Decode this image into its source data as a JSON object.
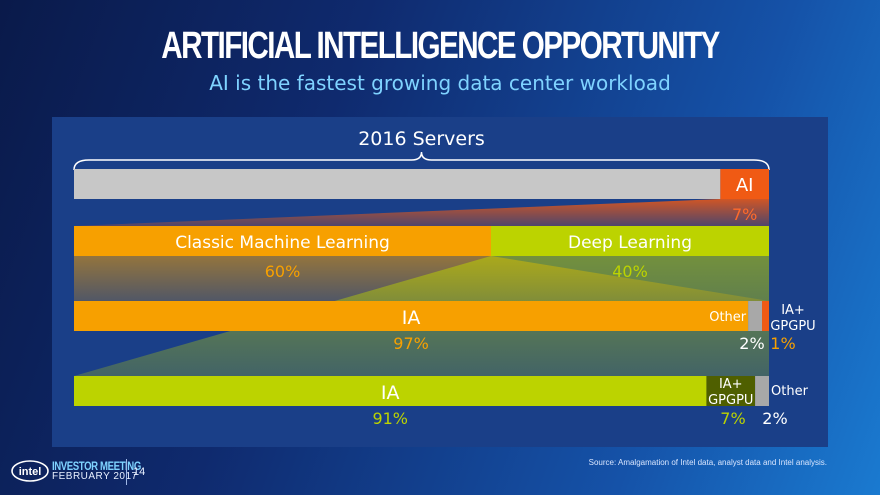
{
  "slide": {
    "title": "ARTIFICIAL INTELLIGENCE OPPORTUNITY",
    "subtitle": "AI is the fastest growing data center workload",
    "source": "Source: Amalgamation of Intel data, analyst data and Intel analysis.",
    "brand": "intel",
    "event": "INVESTOR MEETING",
    "date": "FEBRUARY 2017",
    "page": "14"
  },
  "chart_data": {
    "type": "bar",
    "title": "2016 Servers",
    "colors": {
      "gray": "#c7c7c7",
      "ai": "#f05a14",
      "orange": "#f7a000",
      "green": "#bcd300",
      "dark_green": "#4f5f00",
      "other_gray": "#a8a8a8",
      "blue_text": "#8fd6ff"
    },
    "rows": [
      {
        "name": "servers",
        "segments": [
          {
            "label": "",
            "value": 93
          },
          {
            "label": "AI",
            "value": 7,
            "pct_label": "7%"
          }
        ]
      },
      {
        "name": "ai_breakdown",
        "segments": [
          {
            "label": "Classic Machine Learning",
            "value": 60,
            "pct_label": "60%"
          },
          {
            "label": "Deep Learning",
            "value": 40,
            "pct_label": "40%"
          }
        ]
      },
      {
        "name": "classic_ml",
        "segments": [
          {
            "label": "IA",
            "value": 97,
            "pct_label": "97%"
          },
          {
            "label": "Other",
            "value": 2,
            "pct_label": "2%"
          },
          {
            "label": "IA+ GPGPU",
            "value": 1,
            "pct_label": "1%"
          }
        ]
      },
      {
        "name": "deep_learning",
        "segments": [
          {
            "label": "IA",
            "value": 91,
            "pct_label": "91%"
          },
          {
            "label": "IA+ GPGPU",
            "value": 7,
            "pct_label": "7%"
          },
          {
            "label": "Other",
            "value": 2,
            "pct_label": "2%"
          }
        ]
      }
    ]
  }
}
